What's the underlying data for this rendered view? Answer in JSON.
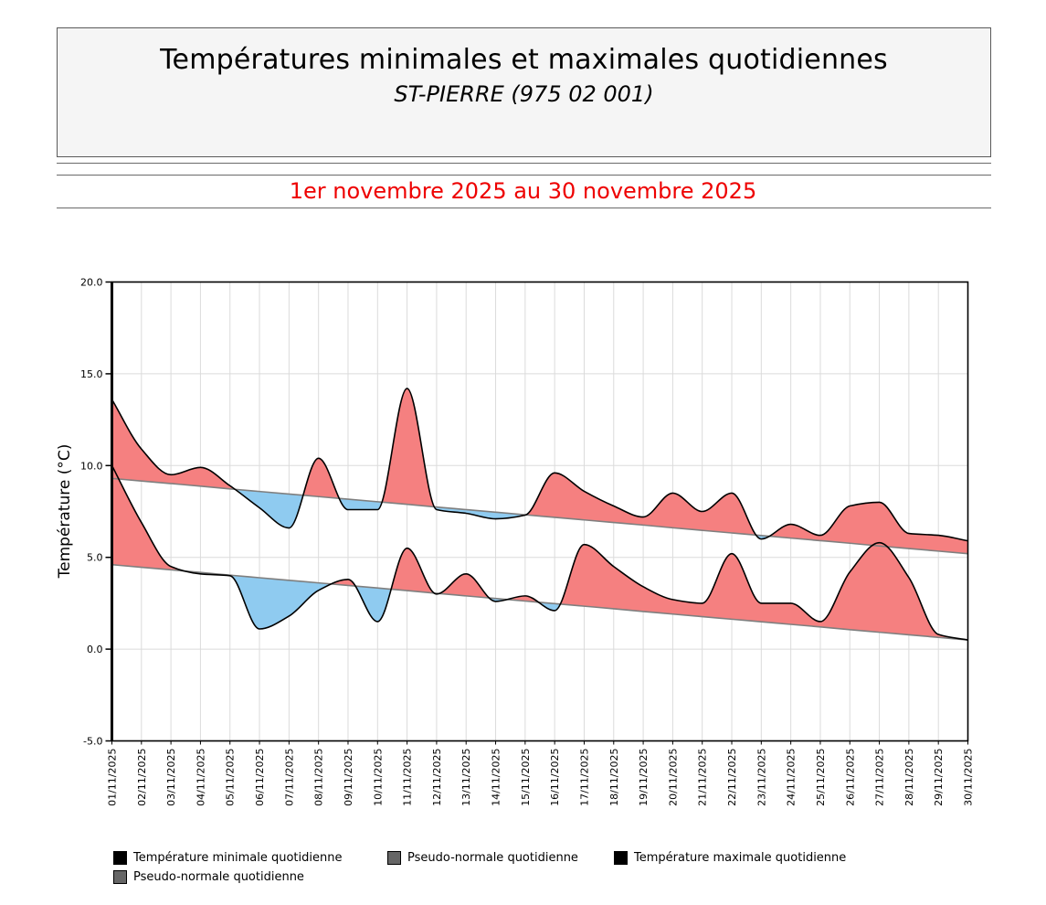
{
  "header": {
    "title": "Températures minimales et maximales quotidiennes",
    "station": "ST-PIERRE (975 02 001)"
  },
  "period": {
    "label": "1er novembre 2025 au 30 novembre 2025",
    "color": "#ee0000"
  },
  "chart_data": {
    "type": "area",
    "ylabel": "Température (°C)",
    "ylim": [
      -5,
      20
    ],
    "ytick_step": 5,
    "ytick_labels": [
      "20.0",
      "15.0",
      "10.0",
      "5.0",
      "0.0",
      "-5.0"
    ],
    "grid": true,
    "legend_position": "bottom",
    "x": [
      "01/11/2025",
      "02/11/2025",
      "03/11/2025",
      "04/11/2025",
      "05/11/2025",
      "06/11/2025",
      "07/11/2025",
      "08/11/2025",
      "09/11/2025",
      "10/11/2025",
      "11/11/2025",
      "12/11/2025",
      "13/11/2025",
      "14/11/2025",
      "15/11/2025",
      "16/11/2025",
      "17/11/2025",
      "18/11/2025",
      "19/11/2025",
      "20/11/2025",
      "21/11/2025",
      "22/11/2025",
      "23/11/2025",
      "24/11/2025",
      "25/11/2025",
      "26/11/2025",
      "27/11/2025",
      "28/11/2025",
      "29/11/2025",
      "30/11/2025"
    ],
    "series": [
      {
        "name": "Température maximale quotidienne",
        "values": [
          13.6,
          10.9,
          9.5,
          9.9,
          8.9,
          7.7,
          6.6,
          10.4,
          7.6,
          7.6,
          14.2,
          7.6,
          7.4,
          7.1,
          7.3,
          9.6,
          8.6,
          7.8,
          7.2,
          8.5,
          7.5,
          8.5,
          6.0,
          6.8,
          6.2,
          7.8,
          8.0,
          6.3,
          6.2,
          5.9
        ],
        "stroke": "#000000"
      },
      {
        "name": "Pseudo-normale quotidienne",
        "values": [
          9.3,
          9.16,
          9.02,
          8.88,
          8.73,
          8.59,
          8.45,
          8.31,
          8.17,
          8.03,
          7.89,
          7.74,
          7.6,
          7.46,
          7.32,
          7.18,
          7.04,
          6.9,
          6.76,
          6.61,
          6.47,
          6.33,
          6.19,
          6.05,
          5.91,
          5.77,
          5.62,
          5.48,
          5.34,
          5.2
        ],
        "stroke": "#7f7f7f"
      },
      {
        "name": "Température minimale quotidienne",
        "values": [
          10.0,
          6.9,
          4.5,
          4.1,
          4.0,
          1.1,
          1.8,
          3.2,
          3.8,
          1.5,
          5.5,
          3.0,
          4.1,
          2.6,
          2.9,
          2.1,
          5.7,
          4.5,
          3.4,
          2.7,
          2.5,
          5.2,
          2.5,
          2.5,
          1.5,
          4.2,
          5.8,
          3.9,
          0.8,
          0.5
        ],
        "stroke": "#000000"
      },
      {
        "name": "Pseudo-normale quotidienne",
        "values": [
          4.6,
          4.46,
          4.32,
          4.18,
          4.03,
          3.89,
          3.75,
          3.61,
          3.47,
          3.33,
          3.19,
          3.04,
          2.9,
          2.76,
          2.62,
          2.48,
          2.34,
          2.2,
          2.05,
          1.91,
          1.77,
          1.63,
          1.49,
          1.35,
          1.21,
          1.06,
          0.92,
          0.78,
          0.64,
          0.5
        ],
        "stroke": "#7f7f7f"
      }
    ],
    "fills": {
      "above_normal": "#f58080",
      "below_normal": "#8fcbf0"
    },
    "grid_color": "#dbdbdb"
  },
  "legend": {
    "items": [
      {
        "label": "Température minimale quotidienne",
        "marker_color": "#000000"
      },
      {
        "label": "Pseudo-normale quotidienne",
        "marker_color": "#666666"
      },
      {
        "label": "Température maximale quotidienne",
        "marker_color": "#000000"
      },
      {
        "label": "Pseudo-normale quotidienne",
        "marker_color": "#666666"
      }
    ]
  }
}
